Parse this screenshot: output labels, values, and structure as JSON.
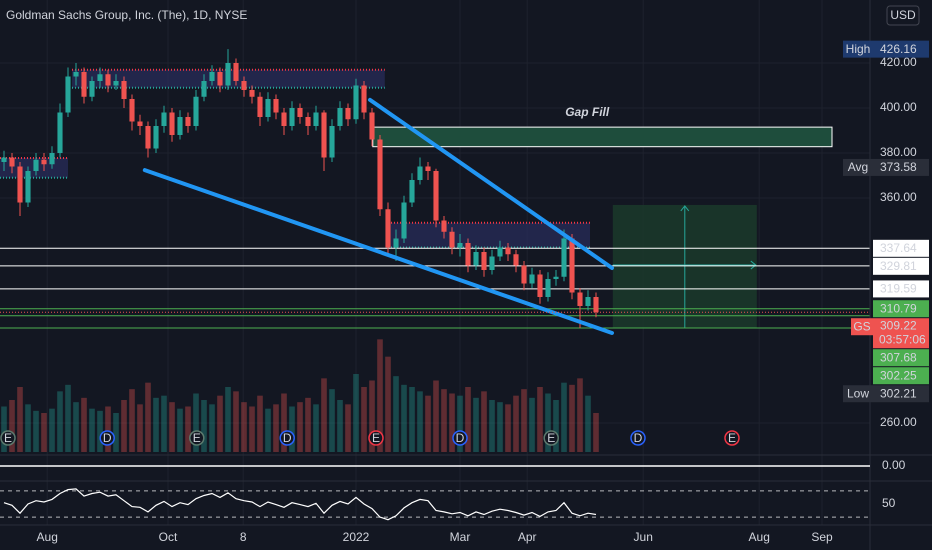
{
  "chart_data": {
    "type": "candlestick",
    "title": "Goldman Sachs Group, Inc. (The), 1D, NYSE",
    "currency": "USD",
    "up_color": "#26a69a",
    "down_color": "#ef5350",
    "grid": true,
    "xlim": [
      -0.5,
      108.25
    ],
    "xticks": [
      {
        "value": 5.4,
        "label": "Aug"
      },
      {
        "value": 20.5,
        "label": "Oct"
      },
      {
        "value": 29.9,
        "label": "8"
      },
      {
        "value": 44,
        "label": "2022"
      },
      {
        "value": 57,
        "label": "Mar"
      },
      {
        "value": 65.4,
        "label": "Apr"
      },
      {
        "value": 79.9,
        "label": "Jun"
      },
      {
        "value": 94.4,
        "label": "Aug"
      },
      {
        "value": 102.25,
        "label": "Sep"
      }
    ],
    "ylim": [
      246,
      448
    ],
    "yticks": [
      {
        "value": 260,
        "label": "260.00"
      },
      {
        "value": 360,
        "label": "360.00"
      },
      {
        "value": 380,
        "label": "380.00"
      },
      {
        "value": 400,
        "label": "400.00"
      },
      {
        "value": 420,
        "label": "420.00"
      }
    ],
    "candles": [
      [
        376,
        381,
        372,
        378
      ],
      [
        378,
        380,
        371,
        374
      ],
      [
        374,
        376,
        352,
        358
      ],
      [
        358,
        374,
        356,
        372
      ],
      [
        372,
        380,
        370,
        377
      ],
      [
        377,
        380,
        372,
        375
      ],
      [
        375,
        383,
        373,
        380
      ],
      [
        380,
        402,
        378,
        398
      ],
      [
        398,
        418,
        396,
        414
      ],
      [
        414,
        420,
        410,
        416
      ],
      [
        416,
        418,
        402,
        405
      ],
      [
        405,
        414,
        403,
        412
      ],
      [
        412,
        418,
        409,
        415
      ],
      [
        415,
        417,
        407,
        410
      ],
      [
        410,
        415,
        408,
        412
      ],
      [
        412,
        414,
        400,
        404
      ],
      [
        404,
        406,
        390,
        394
      ],
      [
        394,
        397,
        388,
        392
      ],
      [
        392,
        394,
        378,
        382
      ],
      [
        382,
        395,
        380,
        392
      ],
      [
        392,
        401,
        389,
        398
      ],
      [
        398,
        400,
        385,
        388
      ],
      [
        388,
        399,
        386,
        396
      ],
      [
        396,
        398,
        389,
        392
      ],
      [
        392,
        408,
        390,
        405
      ],
      [
        405,
        415,
        403,
        412
      ],
      [
        412,
        419,
        410,
        416
      ],
      [
        416,
        418,
        407,
        410
      ],
      [
        410,
        426.16,
        408,
        420
      ],
      [
        420,
        422,
        410,
        412
      ],
      [
        412,
        414,
        405,
        408
      ],
      [
        408,
        410,
        402,
        405
      ],
      [
        405,
        407,
        392,
        396
      ],
      [
        396,
        407,
        394,
        404
      ],
      [
        404,
        406,
        395,
        398
      ],
      [
        398,
        400,
        388,
        392
      ],
      [
        392,
        403,
        390,
        400
      ],
      [
        400,
        402,
        393,
        396
      ],
      [
        396,
        398,
        388,
        392
      ],
      [
        392,
        401,
        390,
        398
      ],
      [
        398,
        399,
        372,
        378
      ],
      [
        378,
        395,
        376,
        392
      ],
      [
        392,
        403,
        390,
        400
      ],
      [
        400,
        402,
        392,
        395
      ],
      [
        395,
        413,
        393,
        410
      ],
      [
        410,
        412,
        395,
        398
      ],
      [
        398,
        400,
        383,
        386
      ],
      [
        386,
        388,
        352,
        355
      ],
      [
        355,
        358,
        334,
        338
      ],
      [
        338,
        346,
        332,
        342
      ],
      [
        342,
        361,
        340,
        358
      ],
      [
        358,
        371,
        356,
        368
      ],
      [
        368,
        378,
        366,
        374
      ],
      [
        374,
        376,
        368,
        372
      ],
      [
        372,
        373,
        347,
        350
      ],
      [
        350,
        352,
        342,
        345
      ],
      [
        345,
        347,
        335,
        338
      ],
      [
        338,
        344,
        334,
        340
      ],
      [
        340,
        342,
        327,
        330
      ],
      [
        330,
        339,
        328,
        336
      ],
      [
        336,
        338,
        325,
        328
      ],
      [
        328,
        337,
        326,
        334
      ],
      [
        334,
        341,
        332,
        338
      ],
      [
        338,
        340,
        332,
        335
      ],
      [
        335,
        337,
        327,
        330
      ],
      [
        330,
        332,
        319,
        322
      ],
      [
        322,
        329,
        320,
        326
      ],
      [
        326,
        328,
        313,
        316
      ],
      [
        316,
        327,
        314,
        324
      ],
      [
        324,
        328,
        321,
        325
      ],
      [
        325,
        346,
        323,
        342
      ],
      [
        342,
        344,
        315,
        318
      ],
      [
        318,
        320,
        302.21,
        312
      ],
      [
        312,
        319,
        310,
        316
      ],
      [
        316,
        318,
        307,
        309.22
      ]
    ],
    "volume": [
      2.1,
      2.4,
      3.0,
      2.2,
      1.9,
      1.8,
      2.0,
      2.8,
      3.1,
      2.3,
      2.5,
      2.0,
      1.9,
      2.1,
      1.8,
      2.4,
      2.9,
      2.2,
      3.2,
      2.5,
      2.6,
      2.3,
      2.0,
      2.1,
      2.7,
      2.4,
      2.2,
      2.6,
      3.0,
      2.8,
      2.3,
      2.1,
      2.6,
      2.0,
      2.2,
      2.7,
      2.1,
      2.3,
      2.5,
      2.2,
      3.4,
      2.9,
      2.4,
      2.2,
      3.6,
      3.0,
      3.3,
      5.2,
      4.4,
      3.5,
      3.1,
      3.0,
      2.8,
      2.6,
      3.3,
      2.9,
      2.7,
      2.6,
      3.0,
      2.5,
      2.8,
      2.4,
      2.3,
      2.2,
      2.6,
      2.9,
      2.5,
      3.0,
      2.7,
      2.4,
      3.2,
      3.1,
      3.4,
      2.6,
      1.8
    ],
    "volume_lim": [
      0,
      6
    ],
    "macd_zero": {
      "value": 0,
      "label": "0.00"
    },
    "rsi": [
      52,
      48,
      36,
      50,
      55,
      53,
      57,
      66,
      72,
      73,
      62,
      66,
      68,
      62,
      64,
      55,
      46,
      45,
      38,
      48,
      54,
      46,
      52,
      49,
      58,
      63,
      66,
      60,
      67,
      58,
      55,
      53,
      46,
      53,
      49,
      45,
      52,
      49,
      46,
      51,
      36,
      48,
      54,
      50,
      60,
      50,
      43,
      30,
      26,
      32,
      44,
      52,
      57,
      55,
      40,
      38,
      35,
      37,
      32,
      38,
      34,
      39,
      42,
      40,
      37,
      33,
      37,
      31,
      38,
      40,
      52,
      36,
      32,
      36,
      34
    ],
    "rsi_lim": [
      21,
      82
    ],
    "rsi_ticks": [
      50
    ],
    "rsi_bands": [
      30,
      70
    ],
    "levels": [
      {
        "value": 337.64,
        "color": "#ffffff"
      },
      {
        "value": 329.81,
        "color": "#ffffff"
      },
      {
        "value": 319.59,
        "color": "#ffffff"
      },
      {
        "value": 310.79,
        "color": "#4caf50"
      },
      {
        "value": 307.68,
        "color": "#4caf50"
      },
      {
        "value": 302.25,
        "color": "#4caf50"
      }
    ],
    "stats": {
      "high": {
        "label": "High",
        "value": 426.16
      },
      "avg": {
        "label": "Avg",
        "value": 373.58
      },
      "low": {
        "label": "Low",
        "value": 302.21
      }
    },
    "symbol": "GS",
    "countdown": "03:57:06",
    "zones": [
      {
        "x": [
          -0.5,
          8
        ],
        "top": 377.8,
        "bottom": 369
      },
      {
        "x": [
          8.5,
          47.6
        ],
        "top": 417,
        "bottom": 409
      },
      {
        "x": [
          48,
          73.25
        ],
        "top": 349,
        "bottom": 338
      }
    ],
    "gap_fill": {
      "label": "Gap Fill",
      "label_x": 72.9,
      "label_y": 397.8,
      "x": [
        46.1,
        103.5
      ],
      "top": 391.5,
      "bottom": 382.8
    },
    "trendlines": [
      [
        [
          45.75,
          403.6
        ],
        [
          76,
          328.9
        ]
      ],
      [
        [
          17.6,
          372.4
        ],
        [
          76,
          300
        ]
      ]
    ],
    "position": {
      "x": [
        76.1,
        94.1
      ],
      "top": 356.9,
      "bottom": 302.2,
      "arrow_x": 85.1,
      "mid": 330.2
    },
    "events": [
      {
        "label": "E",
        "x": 0.5,
        "color": "#5d7a6e"
      },
      {
        "label": "D",
        "x": 12.9,
        "color": "#2962ff"
      },
      {
        "label": "E",
        "x": 24.1,
        "color": "#5d7a6e"
      },
      {
        "label": "D",
        "x": 35.4,
        "color": "#2962ff"
      },
      {
        "label": "E",
        "x": 46.5,
        "color": "#f23645"
      },
      {
        "label": "D",
        "x": 57,
        "color": "#2962ff"
      },
      {
        "label": "E",
        "x": 68.4,
        "color": "#5d7a6e"
      },
      {
        "label": "D",
        "x": 79.25,
        "color": "#2962ff"
      },
      {
        "label": "E",
        "x": 91,
        "color": "#f23645"
      }
    ]
  }
}
